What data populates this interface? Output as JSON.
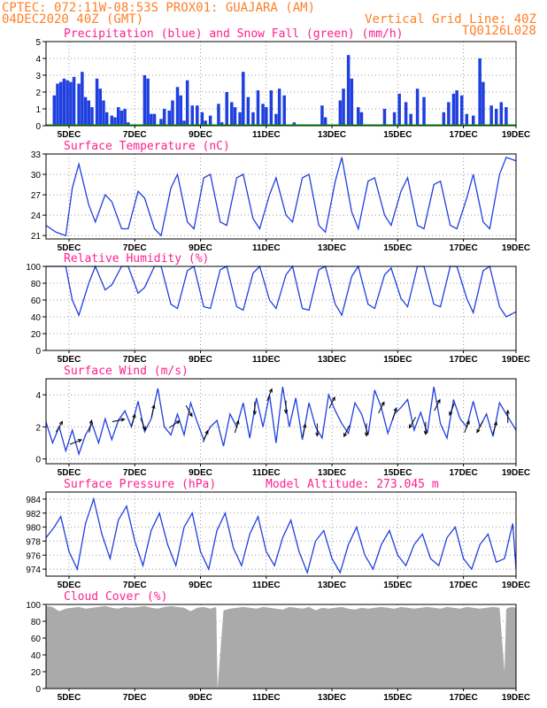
{
  "header": {
    "line1_left": "CPTEC:   072:11W-08:53S   PROX01: GUAJARA (AM)",
    "line2_left": "04DEC2020 40Z (GMT)",
    "line2_right": "Vertical Grid Line: 40Z",
    "line3_right": "TQ0126L028"
  },
  "colors": {
    "header": "#ff7f27",
    "title": "#ff1f8f",
    "line": "#1f3fdf",
    "precip": "#1f3fdf",
    "snow": "#00b000",
    "cloud": "#aaaaaa",
    "grid": "#999999"
  },
  "x_ticks": [
    "5DEC",
    "7DEC",
    "9DEC",
    "11DEC",
    "13DEC",
    "15DEC",
    "17DEC",
    "19DEC"
  ],
  "chart_data": [
    {
      "id": "precip",
      "type": "bar",
      "title": "Precipitation (blue) and Snow Fall (green) (mm/h)",
      "ylim": [
        0,
        5
      ],
      "yticks": [
        0,
        1,
        2,
        3,
        4,
        5
      ],
      "x_unit": "days since start",
      "xlim": [
        0,
        14.3
      ],
      "series": [
        {
          "name": "Precipitation",
          "x": [
            0.25,
            0.35,
            0.45,
            0.55,
            0.65,
            0.75,
            0.85,
            1.0,
            1.1,
            1.2,
            1.3,
            1.4,
            1.55,
            1.65,
            1.75,
            1.85,
            2.0,
            2.1,
            2.2,
            2.3,
            2.4,
            2.5,
            3.0,
            3.1,
            3.2,
            3.3,
            3.5,
            3.6,
            3.75,
            3.85,
            4.0,
            4.1,
            4.2,
            4.3,
            4.45,
            4.6,
            4.75,
            4.85,
            5.0,
            5.25,
            5.35,
            5.5,
            5.65,
            5.75,
            5.9,
            6.0,
            6.15,
            6.3,
            6.45,
            6.6,
            6.7,
            6.85,
            7.0,
            7.1,
            7.25,
            7.55,
            8.4,
            8.5,
            8.95,
            9.05,
            9.2,
            9.3,
            9.5,
            9.6,
            10.3,
            10.6,
            10.75,
            10.95,
            11.1,
            11.3,
            11.5,
            12.1,
            12.25,
            12.4,
            12.5,
            12.65,
            12.8,
            13.0,
            13.2,
            13.3,
            13.55,
            13.7,
            13.85,
            14.0
          ],
          "values": [
            1.8,
            2.5,
            2.6,
            2.8,
            2.7,
            2.6,
            2.9,
            2.5,
            3.2,
            1.7,
            1.5,
            1.1,
            2.8,
            2.2,
            1.5,
            0.8,
            0.6,
            0.5,
            1.1,
            0.9,
            1.0,
            0.2,
            3.0,
            2.8,
            0.7,
            0.7,
            0.4,
            1.0,
            0.9,
            1.5,
            2.3,
            1.8,
            0.3,
            2.7,
            1.2,
            1.2,
            0.8,
            0.3,
            0.6,
            1.3,
            0.2,
            2.0,
            1.4,
            1.1,
            0.8,
            3.2,
            1.7,
            0.8,
            2.1,
            1.3,
            1.1,
            2.1,
            0.7,
            2.2,
            1.8,
            0.2,
            1.2,
            0.5,
            1.5,
            2.2,
            4.2,
            2.8,
            1.1,
            0.8,
            1.0,
            0.8,
            1.9,
            1.4,
            0.7,
            2.2,
            1.7,
            0.8,
            1.4,
            1.9,
            2.1,
            1.8,
            0.7,
            0.6,
            4.0,
            2.6,
            1.2,
            1.0,
            1.4,
            1.1
          ]
        },
        {
          "name": "Snow Fall",
          "x": [
            0,
            14.3
          ],
          "values": [
            0,
            0
          ]
        }
      ]
    },
    {
      "id": "temperature",
      "type": "line",
      "title": "Surface Temperature (nC)",
      "ylim": [
        20.5,
        33
      ],
      "yticks": [
        21,
        24,
        27,
        30,
        33
      ],
      "x_unit": "days since start",
      "series": [
        {
          "name": "",
          "x": [
            0,
            0.3,
            0.6,
            0.8,
            1.0,
            1.3,
            1.5,
            1.8,
            2.0,
            2.3,
            2.5,
            2.8,
            3.0,
            3.3,
            3.5,
            3.8,
            4.0,
            4.3,
            4.5,
            4.8,
            5.0,
            5.3,
            5.5,
            5.8,
            6.0,
            6.3,
            6.5,
            6.8,
            7.0,
            7.3,
            7.5,
            7.8,
            8.0,
            8.3,
            8.5,
            8.8,
            9.0,
            9.3,
            9.5,
            9.8,
            10.0,
            10.3,
            10.5,
            10.8,
            11.0,
            11.3,
            11.5,
            11.8,
            12.0,
            12.3,
            12.5,
            12.8,
            13.0,
            13.3,
            13.5,
            13.8,
            14.0,
            14.3
          ],
          "values": [
            22.5,
            21.5,
            21.0,
            28.0,
            31.5,
            25.5,
            23.0,
            27.0,
            26.0,
            22.0,
            22.0,
            27.5,
            26.5,
            22.0,
            21.0,
            28.0,
            30.0,
            23.0,
            22.0,
            29.5,
            30.0,
            23.0,
            22.5,
            29.5,
            30.0,
            23.5,
            22.0,
            27.0,
            29.5,
            24.0,
            23.0,
            29.5,
            30.0,
            22.5,
            21.5,
            29.0,
            32.5,
            24.5,
            22.0,
            29.0,
            29.5,
            24.0,
            22.5,
            27.5,
            29.5,
            22.5,
            22.0,
            28.5,
            29.0,
            22.5,
            22.0,
            26.5,
            30.0,
            23.0,
            22.0,
            30.0,
            32.5,
            32.0
          ]
        }
      ]
    },
    {
      "id": "humidity",
      "type": "line",
      "title": "Relative Humidity (%)",
      "ylim": [
        0,
        100
      ],
      "yticks": [
        0,
        20,
        40,
        60,
        80,
        100
      ],
      "x_unit": "days since start",
      "series": [
        {
          "name": "",
          "x": [
            0,
            0.3,
            0.6,
            0.8,
            1.0,
            1.3,
            1.5,
            1.8,
            2.0,
            2.3,
            2.5,
            2.8,
            3.0,
            3.3,
            3.5,
            3.8,
            4.0,
            4.3,
            4.5,
            4.8,
            5.0,
            5.3,
            5.5,
            5.8,
            6.0,
            6.3,
            6.5,
            6.8,
            7.0,
            7.3,
            7.5,
            7.8,
            8.0,
            8.3,
            8.5,
            8.8,
            9.0,
            9.3,
            9.5,
            9.8,
            10.0,
            10.3,
            10.5,
            10.8,
            11.0,
            11.3,
            11.5,
            11.8,
            12.0,
            12.3,
            12.5,
            12.8,
            13.0,
            13.3,
            13.5,
            13.8,
            14.0,
            14.3
          ],
          "values": [
            100,
            100,
            100,
            60,
            42,
            80,
            100,
            72,
            78,
            100,
            100,
            68,
            75,
            100,
            100,
            55,
            50,
            95,
            100,
            52,
            50,
            96,
            100,
            52,
            48,
            92,
            100,
            60,
            50,
            90,
            100,
            50,
            48,
            96,
            100,
            55,
            42,
            88,
            100,
            55,
            50,
            90,
            98,
            62,
            52,
            100,
            100,
            55,
            52,
            100,
            100,
            62,
            45,
            95,
            100,
            52,
            40,
            46
          ]
        }
      ]
    },
    {
      "id": "wind",
      "type": "line",
      "title": "Surface Wind (m/s)",
      "ylim": [
        -0.3,
        5
      ],
      "yticks": [
        0,
        2,
        4
      ],
      "x_unit": "days since start",
      "series": [
        {
          "name": "",
          "x": [
            0,
            0.2,
            0.4,
            0.6,
            0.8,
            1.0,
            1.2,
            1.4,
            1.6,
            1.8,
            2.0,
            2.2,
            2.4,
            2.6,
            2.8,
            3.0,
            3.2,
            3.4,
            3.6,
            3.8,
            4.0,
            4.2,
            4.4,
            4.6,
            4.8,
            5.0,
            5.2,
            5.4,
            5.6,
            5.8,
            6.0,
            6.2,
            6.4,
            6.6,
            6.8,
            7.0,
            7.2,
            7.4,
            7.6,
            7.8,
            8.0,
            8.2,
            8.4,
            8.6,
            8.8,
            9.0,
            9.2,
            9.4,
            9.6,
            9.8,
            10.0,
            10.2,
            10.4,
            10.6,
            10.8,
            11.0,
            11.2,
            11.4,
            11.6,
            11.8,
            12.0,
            12.2,
            12.4,
            12.6,
            12.8,
            13.0,
            13.2,
            13.4,
            13.6,
            13.8,
            14.0,
            14.3
          ],
          "values": [
            2.3,
            1.0,
            2.0,
            0.5,
            1.8,
            0.3,
            1.5,
            2.2,
            1.0,
            2.5,
            1.2,
            2.4,
            3.0,
            2.0,
            3.6,
            1.7,
            2.5,
            4.4,
            2.0,
            1.5,
            2.8,
            1.5,
            3.5,
            2.3,
            1.2,
            2.0,
            2.4,
            0.8,
            2.8,
            2.0,
            3.5,
            1.3,
            3.8,
            2.0,
            4.0,
            1.0,
            4.5,
            2.0,
            3.8,
            1.2,
            3.5,
            2.0,
            1.3,
            4.0,
            3.0,
            2.2,
            1.6,
            3.5,
            2.8,
            1.5,
            4.3,
            3.2,
            1.6,
            2.8,
            3.2,
            3.7,
            1.8,
            2.9,
            1.6,
            4.5,
            2.2,
            1.3,
            3.7,
            2.5,
            2.0,
            3.6,
            2.0,
            2.8,
            1.4,
            3.5,
            2.8,
            1.8
          ]
        }
      ],
      "vectors": [
        {
          "x": 0.4,
          "u": 0.6,
          "v": 1.0
        },
        {
          "x": 0.9,
          "u": 1.0,
          "v": 0.4
        },
        {
          "x": 1.35,
          "u": 0.2,
          "v": 1.0
        },
        {
          "x": 2.2,
          "u": 1.0,
          "v": 0.2
        },
        {
          "x": 2.65,
          "u": 0.3,
          "v": 1.0
        },
        {
          "x": 2.95,
          "u": 0.4,
          "v": -1.0
        },
        {
          "x": 3.25,
          "u": 0.2,
          "v": 1.0
        },
        {
          "x": 3.9,
          "u": 0.9,
          "v": 0.6
        },
        {
          "x": 4.35,
          "u": 0.5,
          "v": -0.9
        },
        {
          "x": 4.85,
          "u": 0.4,
          "v": 1.0
        },
        {
          "x": 5.8,
          "u": 0.3,
          "v": 1.0
        },
        {
          "x": 6.35,
          "u": 0.0,
          "v": -1.0
        },
        {
          "x": 6.8,
          "u": 0.4,
          "v": 1.0
        },
        {
          "x": 7.3,
          "u": 0.0,
          "v": -1.0
        },
        {
          "x": 7.85,
          "u": 0.2,
          "v": 1.0
        },
        {
          "x": 8.25,
          "u": 0.0,
          "v": -1.0
        },
        {
          "x": 8.7,
          "u": 0.5,
          "v": 1.0
        },
        {
          "x": 9.15,
          "u": -0.5,
          "v": -1.0
        },
        {
          "x": 9.75,
          "u": 0.0,
          "v": -1.0
        },
        {
          "x": 10.2,
          "u": 0.5,
          "v": 1.0
        },
        {
          "x": 10.6,
          "u": 0.3,
          "v": 1.0
        },
        {
          "x": 11.15,
          "u": -0.6,
          "v": -1.0
        },
        {
          "x": 11.55,
          "u": 0.0,
          "v": -1.0
        },
        {
          "x": 11.9,
          "u": 0.5,
          "v": 1.0
        },
        {
          "x": 12.35,
          "u": -0.4,
          "v": -1.0
        },
        {
          "x": 12.8,
          "u": 0.4,
          "v": 1.0
        },
        {
          "x": 13.2,
          "u": -0.5,
          "v": -1.0
        },
        {
          "x": 13.65,
          "u": 0.3,
          "v": 1.0
        },
        {
          "x": 14.05,
          "u": 0.0,
          "v": 1.0
        }
      ]
    },
    {
      "id": "pressure",
      "type": "line",
      "title": "Surface Pressure (hPa)",
      "subtitle": "Model Altitude: 273.045 m",
      "ylim": [
        973,
        985
      ],
      "yticks": [
        974,
        976,
        978,
        980,
        982,
        984
      ],
      "x_unit": "days since start",
      "series": [
        {
          "name": "",
          "x": [
            0,
            0.25,
            0.45,
            0.7,
            0.95,
            1.2,
            1.45,
            1.7,
            1.95,
            2.2,
            2.45,
            2.7,
            2.95,
            3.2,
            3.45,
            3.7,
            3.95,
            4.2,
            4.45,
            4.7,
            4.95,
            5.2,
            5.45,
            5.7,
            5.95,
            6.2,
            6.45,
            6.7,
            6.95,
            7.2,
            7.45,
            7.7,
            7.95,
            8.2,
            8.45,
            8.7,
            8.95,
            9.2,
            9.45,
            9.7,
            9.95,
            10.2,
            10.45,
            10.7,
            10.95,
            11.2,
            11.45,
            11.7,
            11.95,
            12.2,
            12.45,
            12.7,
            12.95,
            13.2,
            13.45,
            13.7,
            13.95,
            14.2,
            14.3
          ],
          "values": [
            978.5,
            980.0,
            981.5,
            976.5,
            974.0,
            980.5,
            984.0,
            979.0,
            975.5,
            981.0,
            983.0,
            978.0,
            974.5,
            979.5,
            982.0,
            977.5,
            974.5,
            980.0,
            982.0,
            976.5,
            974.0,
            979.5,
            982.0,
            977.0,
            974.5,
            979.0,
            981.5,
            976.5,
            974.5,
            978.5,
            981.0,
            976.5,
            973.5,
            978.0,
            979.5,
            975.5,
            973.5,
            977.5,
            980.0,
            976.0,
            974.0,
            977.5,
            979.5,
            976.0,
            974.5,
            977.5,
            979.0,
            975.5,
            974.5,
            978.5,
            980.0,
            975.5,
            974.0,
            977.5,
            979.0,
            975.0,
            975.5,
            980.5,
            974.0
          ]
        }
      ]
    },
    {
      "id": "cloud",
      "type": "area",
      "title": "Cloud Cover (%)",
      "ylim": [
        0,
        100
      ],
      "yticks": [
        0,
        20,
        40,
        60,
        80,
        100
      ],
      "x_unit": "days since start",
      "series": [
        {
          "name": "",
          "x": [
            0,
            0.2,
            0.4,
            0.6,
            0.8,
            1.0,
            1.2,
            1.4,
            1.6,
            1.8,
            2.0,
            2.2,
            2.4,
            2.6,
            2.8,
            3.0,
            3.2,
            3.4,
            3.6,
            3.8,
            4.0,
            4.2,
            4.4,
            4.6,
            4.8,
            5.0,
            5.18,
            5.22,
            5.4,
            5.6,
            5.8,
            6.0,
            6.2,
            6.4,
            6.6,
            6.8,
            7.0,
            7.2,
            7.4,
            7.6,
            7.8,
            8.0,
            8.2,
            8.4,
            8.6,
            8.8,
            9.0,
            9.2,
            9.4,
            9.6,
            9.8,
            10.0,
            10.2,
            10.4,
            10.6,
            10.8,
            11.0,
            11.2,
            11.4,
            11.6,
            11.8,
            12.0,
            12.2,
            12.4,
            12.6,
            12.8,
            13.0,
            13.2,
            13.4,
            13.6,
            13.8,
            13.95,
            14.0,
            14.05,
            14.2,
            14.3
          ],
          "values": [
            98,
            97,
            92,
            95,
            96,
            97,
            95,
            96,
            97,
            98,
            96,
            95,
            97,
            96,
            97,
            98,
            96,
            95,
            97,
            98,
            97,
            96,
            92,
            96,
            97,
            95,
            97,
            0,
            93,
            95,
            96,
            97,
            96,
            95,
            97,
            96,
            95,
            94,
            97,
            96,
            95,
            97,
            93,
            96,
            95,
            96,
            97,
            95,
            94,
            96,
            95,
            96,
            97,
            96,
            95,
            97,
            96,
            95,
            96,
            97,
            96,
            95,
            97,
            96,
            95,
            97,
            96,
            95,
            96,
            97,
            96,
            20,
            94,
            96,
            97,
            96
          ]
        }
      ]
    }
  ]
}
